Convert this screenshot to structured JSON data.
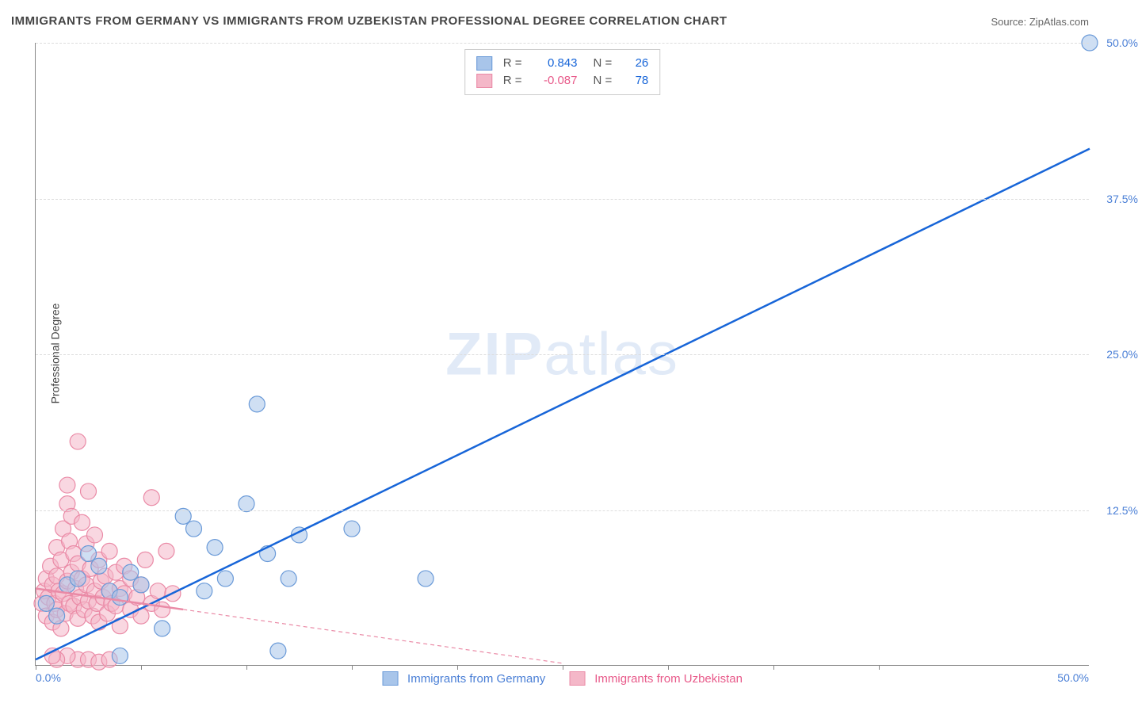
{
  "title": "IMMIGRANTS FROM GERMANY VS IMMIGRANTS FROM UZBEKISTAN PROFESSIONAL DEGREE CORRELATION CHART",
  "source": "Source: ZipAtlas.com",
  "ylabel": "Professional Degree",
  "watermark": {
    "bold": "ZIP",
    "light": "atlas"
  },
  "chart": {
    "type": "scatter-correlation",
    "background_color": "#ffffff",
    "grid_color": "#dddddd",
    "axis_color": "#888888",
    "tick_color": "#4a7fd6",
    "tick_fontsize": 14,
    "xlim": [
      0,
      50
    ],
    "ylim": [
      0,
      50
    ],
    "yticks": [
      0,
      12.5,
      25,
      37.5,
      50
    ],
    "ytick_labels": [
      "0.0%",
      "12.5%",
      "25.0%",
      "37.5%",
      "50.0%"
    ],
    "xtick_labels": {
      "left": "0.0%",
      "right": "50.0%"
    },
    "xtick_marks": [
      0,
      5,
      10,
      15,
      20,
      25,
      30,
      35,
      40
    ],
    "marker_radius": 10,
    "marker_opacity": 0.55,
    "line_width": 2.5,
    "series": [
      {
        "name": "Immigrants from Germany",
        "fill": "#a8c5ea",
        "stroke": "#6a9ad8",
        "line_color": "#1765d8",
        "r_value": "0.843",
        "r_color": "#1765d8",
        "n_value": "26",
        "n_color": "#1765d8",
        "line_dash": "none",
        "trend": {
          "x1": 0,
          "y1": 0.5,
          "x2": 50,
          "y2": 41.5
        },
        "points": [
          [
            0.5,
            5
          ],
          [
            1,
            4
          ],
          [
            1.5,
            6.5
          ],
          [
            2,
            7
          ],
          [
            2.5,
            9
          ],
          [
            3,
            8
          ],
          [
            3.5,
            6
          ],
          [
            4,
            5.5
          ],
          [
            4.5,
            7.5
          ],
          [
            5,
            6.5
          ],
          [
            6,
            3
          ],
          [
            7,
            12
          ],
          [
            7.5,
            11
          ],
          [
            8,
            6
          ],
          [
            8.5,
            9.5
          ],
          [
            9,
            7
          ],
          [
            10,
            13
          ],
          [
            10.5,
            21
          ],
          [
            11,
            9
          ],
          [
            12,
            7
          ],
          [
            12.5,
            10.5
          ],
          [
            15,
            11
          ],
          [
            18.5,
            7
          ],
          [
            11.5,
            1.2
          ],
          [
            4,
            0.8
          ],
          [
            50,
            50
          ]
        ]
      },
      {
        "name": "Immigrants from Uzbekistan",
        "fill": "#f4b7c8",
        "stroke": "#ea8aa6",
        "line_color": "#ea8aa6",
        "r_value": "-0.087",
        "r_color": "#e85a8a",
        "n_value": "78",
        "n_color": "#1765d8",
        "line_dash": "5,4",
        "trend_solid_until": 7,
        "trend": {
          "x1": 0,
          "y1": 6.2,
          "x2": 25,
          "y2": 0.2
        },
        "points": [
          [
            0.3,
            5
          ],
          [
            0.4,
            6
          ],
          [
            0.5,
            4
          ],
          [
            0.5,
            7
          ],
          [
            0.6,
            5.5
          ],
          [
            0.7,
            8
          ],
          [
            0.8,
            3.5
          ],
          [
            0.8,
            6.5
          ],
          [
            0.9,
            5
          ],
          [
            1,
            4.5
          ],
          [
            1,
            7.2
          ],
          [
            1,
            9.5
          ],
          [
            1.1,
            6
          ],
          [
            1.2,
            3
          ],
          [
            1.2,
            8.5
          ],
          [
            1.3,
            5.8
          ],
          [
            1.3,
            11
          ],
          [
            1.4,
            4.2
          ],
          [
            1.5,
            6.8
          ],
          [
            1.5,
            13
          ],
          [
            1.5,
            14.5
          ],
          [
            1.6,
            5
          ],
          [
            1.6,
            10
          ],
          [
            1.7,
            7.5
          ],
          [
            1.7,
            12
          ],
          [
            1.8,
            4.8
          ],
          [
            1.8,
            9
          ],
          [
            1.9,
            6.2
          ],
          [
            2,
            3.8
          ],
          [
            2,
            8.2
          ],
          [
            2,
            18
          ],
          [
            2.1,
            5.5
          ],
          [
            2.2,
            7
          ],
          [
            2.2,
            11.5
          ],
          [
            2.3,
            4.5
          ],
          [
            2.4,
            6.5
          ],
          [
            2.4,
            9.8
          ],
          [
            2.5,
            5.2
          ],
          [
            2.5,
            14
          ],
          [
            2.6,
            7.8
          ],
          [
            2.7,
            4
          ],
          [
            2.8,
            6
          ],
          [
            2.8,
            10.5
          ],
          [
            2.9,
            5
          ],
          [
            3,
            8.5
          ],
          [
            3,
            3.5
          ],
          [
            3.1,
            6.8
          ],
          [
            3.2,
            5.5
          ],
          [
            3.3,
            7.2
          ],
          [
            3.4,
            4.2
          ],
          [
            3.5,
            9.2
          ],
          [
            3.5,
            6
          ],
          [
            3.6,
            5
          ],
          [
            3.8,
            7.5
          ],
          [
            3.8,
            4.8
          ],
          [
            4,
            6.2
          ],
          [
            4,
            3.2
          ],
          [
            4.2,
            5.8
          ],
          [
            4.2,
            8
          ],
          [
            4.5,
            4.5
          ],
          [
            4.5,
            7
          ],
          [
            4.8,
            5.5
          ],
          [
            5,
            6.5
          ],
          [
            5,
            4
          ],
          [
            5.2,
            8.5
          ],
          [
            5.5,
            5
          ],
          [
            5.5,
            13.5
          ],
          [
            5.8,
            6
          ],
          [
            6,
            4.5
          ],
          [
            6.2,
            9.2
          ],
          [
            6.5,
            5.8
          ],
          [
            2,
            0.5
          ],
          [
            2.5,
            0.5
          ],
          [
            3,
            0.3
          ],
          [
            3.5,
            0.5
          ],
          [
            1.5,
            0.8
          ],
          [
            1,
            0.5
          ],
          [
            0.8,
            0.8
          ]
        ]
      }
    ]
  },
  "legend_top": {
    "r_label": "R =",
    "n_label": "N ="
  },
  "legend_bottom_labels": [
    "Immigrants from Germany",
    "Immigrants from Uzbekistan"
  ]
}
